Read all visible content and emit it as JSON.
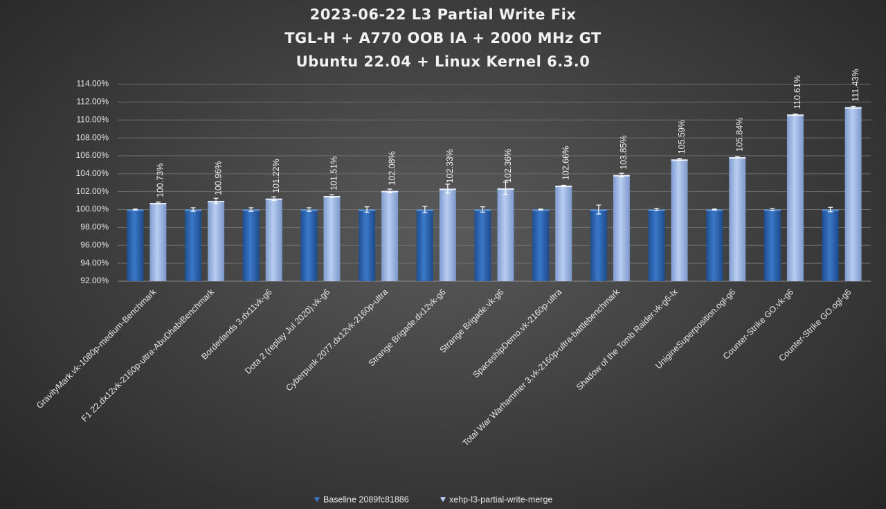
{
  "chart_data": {
    "type": "bar",
    "title": [
      "2023-06-22 L3 Partial Write Fix",
      "TGL-H + A770 OOB IA + 2000 MHz GT",
      "Ubuntu 22.04 + Linux Kernel 6.3.0"
    ],
    "xlabel": "",
    "ylabel": "",
    "ylim": [
      92,
      114
    ],
    "yticks": [
      92,
      94,
      96,
      98,
      100,
      102,
      104,
      106,
      108,
      110,
      112,
      114
    ],
    "ytick_labels": [
      "92.00%",
      "94.00%",
      "96.00%",
      "98.00%",
      "100.00%",
      "102.00%",
      "104.00%",
      "106.00%",
      "108.00%",
      "110.00%",
      "112.00%",
      "114.00%"
    ],
    "grid": true,
    "legend_position": "bottom",
    "categories": [
      "GravityMark.vk-1080p-medium-Benchmark",
      "F1 22.dx12vk-2160p-ultra-AbuDhabiBenchmark",
      "Borderlands 3.dx11vk-g6",
      "Dota 2 (replay Jul 2020).vk-g6",
      "Cyberpunk 2077.dx12vk-2160p-ultra",
      "Strange Brigade.dx12vk-g6",
      "Strange Brigade.vk-g6",
      "SpaceshipDemo.vk-2160p-ultra",
      "Total War Warhammer 3.vk-2160p-ultra-battlebenchmark",
      "Shadow of the Tomb Raider.vk-g6-lx",
      "UnigineSuperposition.ogl-g6",
      "Counter-Strike GO.vk-g6",
      "Counter-Strike GO.ogl-g6"
    ],
    "series": [
      {
        "name": "Baseline 2089fc81886",
        "color": "#2f65b0",
        "values": [
          100,
          100,
          100,
          100,
          100,
          100,
          100,
          100,
          100,
          100,
          100,
          100,
          100
        ],
        "errors": [
          0.05,
          0.2,
          0.2,
          0.2,
          0.3,
          0.35,
          0.3,
          0.05,
          0.5,
          0.1,
          0.05,
          0.1,
          0.25
        ]
      },
      {
        "name": "xehp-l3-partial-write-merge",
        "color": "#9ab3e0",
        "values": [
          100.73,
          100.96,
          101.22,
          101.51,
          102.08,
          102.33,
          102.36,
          102.66,
          103.85,
          105.59,
          105.84,
          110.61,
          111.43
        ],
        "errors": [
          0.1,
          0.3,
          0.2,
          0.15,
          0.2,
          0.5,
          0.7,
          0.05,
          0.2,
          0.1,
          0.1,
          0.05,
          0.1
        ],
        "data_labels": [
          "100.73%",
          "100.96%",
          "101.22%",
          "101.51%",
          "102.08%",
          "102.33%",
          "102.36%",
          "102.66%",
          "103.85%",
          "105.59%",
          "105.84%",
          "110.61%",
          "111.43%"
        ]
      }
    ]
  },
  "icons": {
    "legend_marker": "down-triangle"
  }
}
